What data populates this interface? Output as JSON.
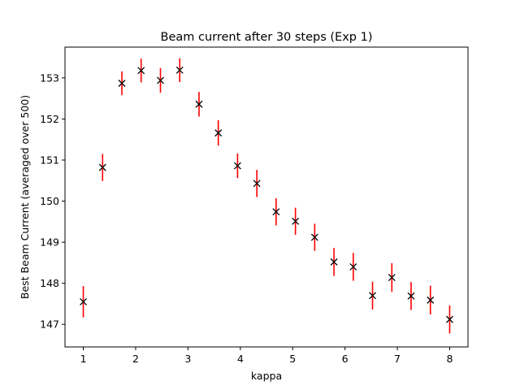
{
  "chart_data": {
    "type": "scatter",
    "title": "Beam current after 30 steps (Exp 1)",
    "xlabel": "kappa",
    "ylabel": "Best Beam Current (averaged over 500)",
    "xlim": [
      0.65,
      8.35
    ],
    "ylim": [
      146.45,
      153.75
    ],
    "xticks": [
      1,
      2,
      3,
      4,
      5,
      6,
      7,
      8
    ],
    "yticks": [
      147,
      148,
      149,
      150,
      151,
      152,
      153
    ],
    "marker": "x",
    "marker_color": "#000000",
    "errorbar_color": "#ff0000",
    "grid": false,
    "series": [
      {
        "x": [
          1.0,
          1.368,
          1.737,
          2.105,
          2.474,
          2.842,
          3.211,
          3.579,
          3.947,
          4.316,
          4.684,
          5.053,
          5.421,
          5.789,
          6.158,
          6.526,
          6.895,
          7.263,
          7.632,
          8.0
        ],
        "y": [
          147.55,
          150.82,
          152.87,
          153.18,
          152.94,
          153.19,
          152.36,
          151.66,
          150.86,
          150.43,
          149.74,
          149.51,
          149.12,
          148.52,
          148.4,
          147.7,
          148.14,
          147.69,
          147.59,
          147.12
        ],
        "err": [
          0.38,
          0.33,
          0.29,
          0.29,
          0.3,
          0.29,
          0.3,
          0.31,
          0.3,
          0.33,
          0.33,
          0.33,
          0.33,
          0.34,
          0.34,
          0.34,
          0.35,
          0.34,
          0.35,
          0.34
        ]
      }
    ]
  }
}
